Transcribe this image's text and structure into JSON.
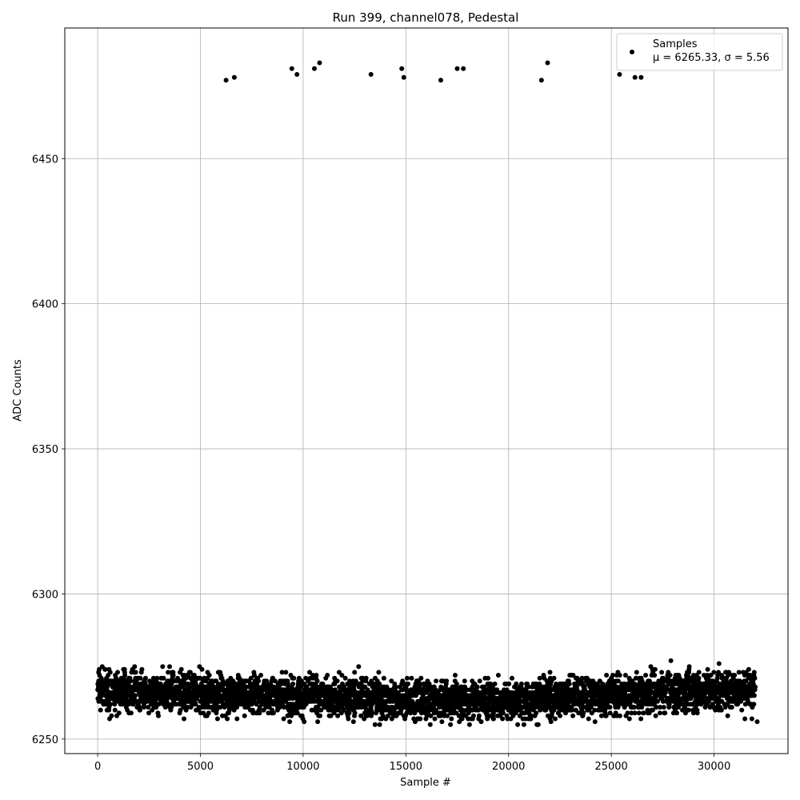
{
  "chart_data": {
    "type": "scatter",
    "title": "Run 399, channel078, Pedestal",
    "xlabel": "Sample #",
    "ylabel": "ADC Counts",
    "xlim": [
      -1600,
      33600
    ],
    "ylim": [
      6245,
      6495
    ],
    "xticks": [
      0,
      5000,
      10000,
      15000,
      20000,
      25000,
      30000
    ],
    "yticks": [
      6250,
      6300,
      6350,
      6400,
      6450
    ],
    "grid": true,
    "legend_position": "top-right",
    "series": [
      {
        "name": "Samples",
        "stats_label": "μ = 6265.33, σ = 5.56",
        "color": "#000000",
        "marker": "circle",
        "n_samples": 32000,
        "bulk": {
          "x_range": [
            0,
            32000
          ],
          "center_profile": [
            [
              0,
              6266.5
            ],
            [
              4000,
              6266
            ],
            [
              8000,
              6265.5
            ],
            [
              12000,
              6264.5
            ],
            [
              16000,
              6263.5
            ],
            [
              20000,
              6263.5
            ],
            [
              24000,
              6265
            ],
            [
              28000,
              6266.5
            ],
            [
              32000,
              6267
            ]
          ],
          "core_half_width": 6,
          "range": [
            6255,
            6277
          ]
        },
        "outliers": [
          [
            6250,
            6477
          ],
          [
            6650,
            6478
          ],
          [
            9450,
            6481
          ],
          [
            9700,
            6479
          ],
          [
            10550,
            6481
          ],
          [
            10800,
            6483
          ],
          [
            13300,
            6479
          ],
          [
            14800,
            6481
          ],
          [
            14900,
            6478
          ],
          [
            16700,
            6477
          ],
          [
            17500,
            6481
          ],
          [
            17800,
            6481
          ],
          [
            21600,
            6477
          ],
          [
            21900,
            6483
          ],
          [
            25400,
            6479
          ],
          [
            26150,
            6478
          ],
          [
            26450,
            6478
          ],
          [
            12700,
            6275
          ],
          [
            12450,
            6256
          ],
          [
            13500,
            6255
          ],
          [
            18100,
            6255
          ],
          [
            27900,
            6277
          ],
          [
            32100,
            6256
          ],
          [
            3500,
            6275
          ],
          [
            1800,
            6275
          ]
        ]
      }
    ]
  }
}
